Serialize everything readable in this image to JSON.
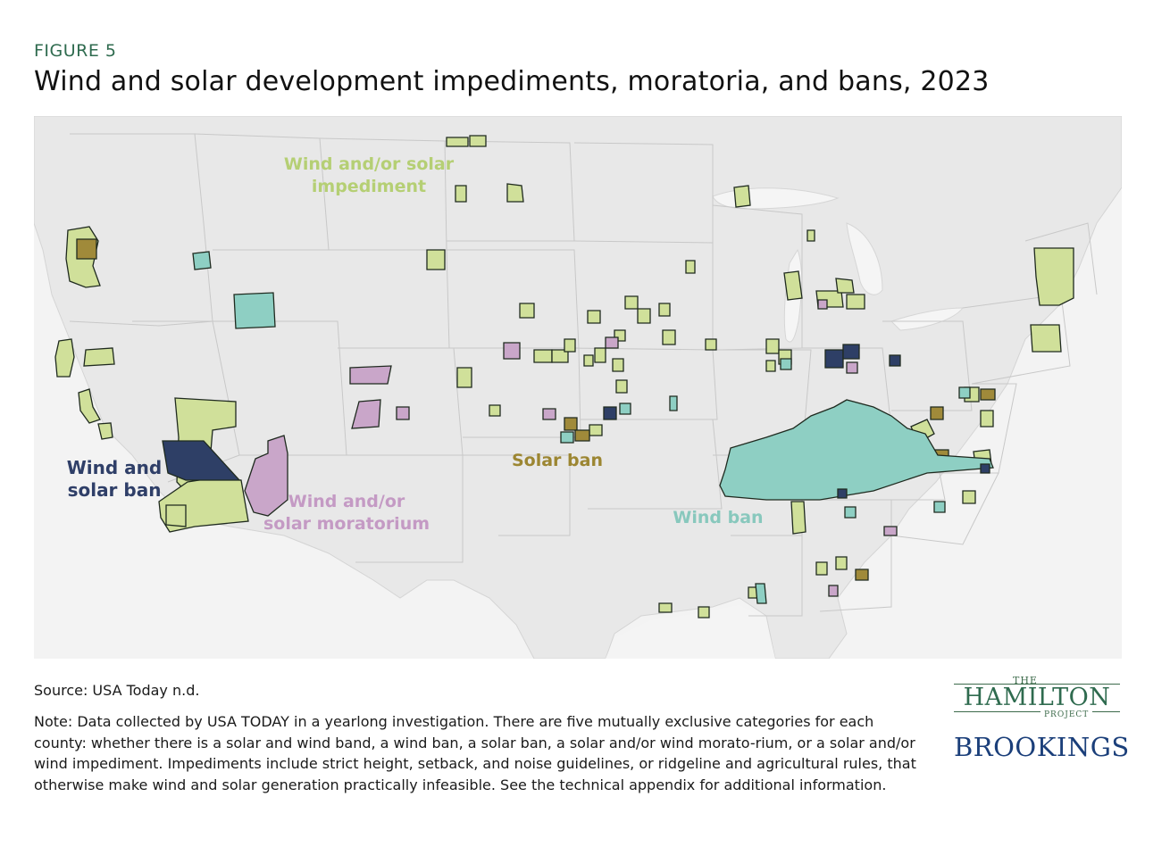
{
  "header": {
    "eyebrow": "FIGURE 5",
    "title": "Wind and solar development impediments, moratoria, and bans, 2023"
  },
  "map": {
    "categories": [
      {
        "key": "impediment",
        "label": "Wind and/or solar impediment",
        "color": "#d0e09a",
        "label_color": "#b5cf74"
      },
      {
        "key": "moratorium",
        "label": "Wind and/or solar moratorium",
        "color": "#c9a6c9",
        "label_color": "#c49ac4"
      },
      {
        "key": "solar_ban",
        "label": "Solar ban",
        "color": "#a08a3a",
        "label_color": "#9c8632"
      },
      {
        "key": "wind_ban",
        "label": "Wind ban",
        "color": "#8ecfc3",
        "label_color": "#88c8bd"
      },
      {
        "key": "both_ban",
        "label": "Wind and solar ban",
        "color": "#2e3f66",
        "label_color": "#2f3f68"
      }
    ],
    "labels": {
      "impediment": "Wind and/or solar impediment",
      "moratorium": "Wind and/or solar moratorium",
      "solar_ban": "Solar ban",
      "wind_ban": "Wind ban",
      "both_ban": "Wind and solar ban"
    },
    "label_lines": {
      "impediment": [
        "Wind and/or solar",
        "impediment"
      ],
      "moratorium": [
        "Wind and/or",
        "solar moratorium"
      ],
      "solar_ban": [
        "Solar ban"
      ],
      "wind_ban": [
        "Wind ban"
      ],
      "both_ban": [
        "Wind and",
        "solar ban"
      ]
    },
    "land_color": "#e8e8e8",
    "border_color": "#c8c8c8",
    "outline_color": "#1f2a1f"
  },
  "footer": {
    "source": "Source: USA Today n.d.",
    "note": "Note: Data collected by USA TODAY in a yearlong investigation. There are five mutually exclusive categories for each county: whether there is a solar and wind band, a wind ban, a solar ban, a solar and/or wind morato-rium, or a solar and/or wind impediment. Impediments include strict height, setback, and noise guidelines, or ridgeline and agricultural rules, that otherwise make wind and solar generation practically infeasible. See the technical appendix for additional information."
  },
  "logos": {
    "the": "THE",
    "hamilton": "HAMILTON",
    "project": "PROJECT",
    "brookings": "BROOKINGS"
  }
}
